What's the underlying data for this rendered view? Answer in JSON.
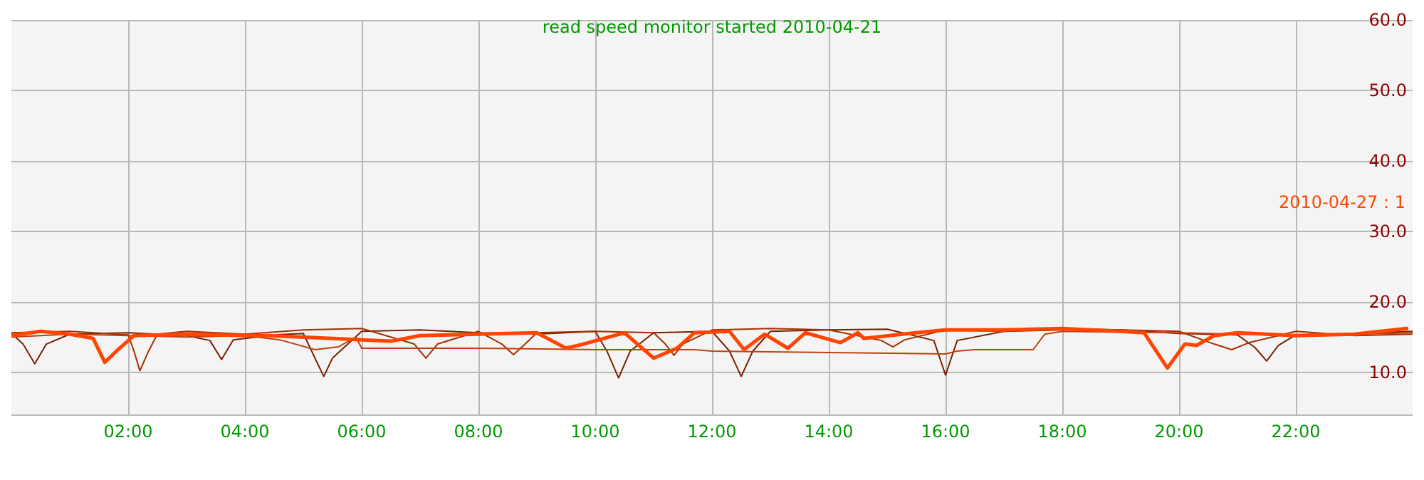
{
  "chart_data": {
    "type": "line",
    "title": "read speed monitor started 2010-04-21",
    "xlim": [
      0,
      24
    ],
    "xticks": [
      {
        "value": 2,
        "label": "02:00"
      },
      {
        "value": 4,
        "label": "04:00"
      },
      {
        "value": 6,
        "label": "06:00"
      },
      {
        "value": 8,
        "label": "08:00"
      },
      {
        "value": 10,
        "label": "10:00"
      },
      {
        "value": 12,
        "label": "12:00"
      },
      {
        "value": 14,
        "label": "14:00"
      },
      {
        "value": 16,
        "label": "16:00"
      },
      {
        "value": 18,
        "label": "18:00"
      },
      {
        "value": 20,
        "label": "20:00"
      },
      {
        "value": 22,
        "label": "22:00"
      }
    ],
    "ylim": [
      4,
      60
    ],
    "yticks": [
      {
        "value": 10,
        "label": "10.0"
      },
      {
        "value": 20,
        "label": "20.0"
      },
      {
        "value": 30,
        "label": "30.0"
      },
      {
        "value": 40,
        "label": "40.0"
      },
      {
        "value": 50,
        "label": "50.0"
      },
      {
        "value": 60,
        "label": "60.0"
      }
    ],
    "grid": true,
    "legend": "right",
    "marker": "none",
    "line_style": "solid",
    "series": [
      {
        "color": "#7a2000",
        "x": [
          0,
          0.2,
          0.4,
          0.6,
          1,
          2,
          3,
          3.4,
          3.6,
          3.8,
          4.5,
          5,
          5.2,
          5.35,
          5.5,
          6,
          7,
          8,
          9,
          10,
          10.2,
          10.4,
          10.6,
          11,
          12,
          12.3,
          12.5,
          12.7,
          13,
          14,
          15,
          15.8,
          16,
          16.2,
          17,
          18,
          19,
          20,
          21,
          21.3,
          21.5,
          21.7,
          22,
          23,
          24
        ],
        "values": [
          15.5,
          14,
          11.2,
          14,
          15.4,
          15.6,
          15.2,
          14.5,
          11.8,
          14.6,
          15.3,
          15.5,
          12,
          9.4,
          12,
          15.8,
          16,
          15.6,
          15.4,
          15.8,
          13,
          9.2,
          13,
          15.6,
          15.8,
          13,
          9.4,
          13,
          15.8,
          16,
          16.1,
          14.5,
          9.6,
          14.5,
          15.8,
          16,
          16,
          15.5,
          15.3,
          13.5,
          11.6,
          13.8,
          15.3,
          15.5,
          15.8
        ]
      },
      {
        "color": "#a33000",
        "x": [
          0,
          1,
          2,
          2.1,
          2.2,
          2.35,
          2.5,
          3,
          4,
          5,
          6,
          6.9,
          7.1,
          7.3,
          8,
          8.4,
          8.6,
          8.8,
          9,
          10,
          11,
          11.2,
          11.35,
          11.5,
          12,
          13,
          14,
          14.9,
          15.1,
          15.3,
          16,
          17,
          18,
          19,
          20,
          20.6,
          20.9,
          21.2,
          22,
          23,
          24
        ],
        "values": [
          15.6,
          15.8,
          15.3,
          13,
          10.2,
          13,
          15.4,
          15.8,
          15.4,
          16,
          16.2,
          14,
          12,
          14,
          15.8,
          14,
          12.5,
          14,
          15.6,
          15.8,
          15.6,
          14,
          12.4,
          14,
          16,
          16.2,
          16,
          14.5,
          13.6,
          14.6,
          16,
          15.8,
          16.2,
          16,
          15.8,
          14,
          13.2,
          14.2,
          15.8,
          15.2,
          15.4
        ]
      },
      {
        "color": "#c04010",
        "x": [
          0,
          1,
          2,
          3,
          4,
          4.6,
          5.2,
          5.6,
          5.9,
          6,
          8,
          10,
          11.7,
          12,
          14,
          16,
          16.2,
          16.5,
          17.5,
          17.7,
          18,
          20,
          22,
          24
        ],
        "values": [
          15,
          15.4,
          15.2,
          15,
          15.2,
          14.6,
          13.2,
          13.6,
          15,
          13.4,
          13.4,
          13.2,
          13.2,
          13,
          12.8,
          12.6,
          13,
          13.2,
          13.2,
          15.4,
          15.8,
          15.6,
          15.2,
          15.6
        ]
      },
      {
        "name": "2010-04-27 : 1",
        "color": "#ff4500",
        "x": [
          0,
          0.5,
          1,
          1.4,
          1.6,
          1.8,
          2.1,
          3,
          4,
          4.4,
          5.5,
          6.5,
          7,
          8,
          9,
          9.5,
          9.8,
          10.5,
          11,
          11.4,
          11.7,
          12.3,
          12.55,
          12.9,
          13.3,
          13.6,
          14.2,
          14.5,
          14.6,
          15.5,
          16,
          17,
          18,
          19,
          19.4,
          19.8,
          20.1,
          20.3,
          20.6,
          21,
          22,
          23,
          23.9
        ],
        "values": [
          15.2,
          15.8,
          15.4,
          14.8,
          11.4,
          13,
          15.2,
          15.4,
          15.2,
          15.2,
          14.8,
          14.4,
          15.2,
          15.4,
          15.6,
          13.4,
          14,
          15.6,
          12,
          13.4,
          15.6,
          15.8,
          13.2,
          15.4,
          13.4,
          15.6,
          14.2,
          15.6,
          14.8,
          15.6,
          16,
          16,
          16.2,
          15.8,
          15.6,
          10.6,
          14,
          13.8,
          15.2,
          15.6,
          15.2,
          15.4,
          16.2
        ]
      }
    ]
  }
}
